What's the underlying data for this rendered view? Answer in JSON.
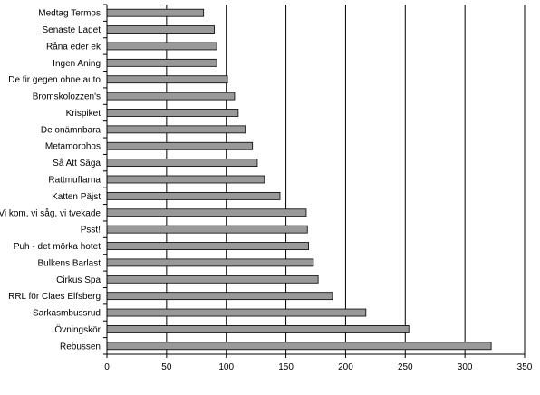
{
  "chart_data": {
    "type": "bar",
    "orientation": "horizontal",
    "categories": [
      "Medtag Termos",
      "Senaste Laget",
      "Råna eder ek",
      "Ingen Aning",
      "De fir gegen ohne auto",
      "Bromskolozzen's",
      "Krispiket",
      "De onämnbara",
      "Metamorphos",
      "Så Att Säga",
      "Rattmuffarna",
      "Katten Päjst",
      "Vi kom, vi såg, vi tvekade",
      "Psst!",
      "Puh - det mörka hotet",
      "Bulkens Barlast",
      "Cirkus Spa",
      "RRL för Claes Elfsberg",
      "Sarkasmbussrud",
      "Övningskör",
      "Rebussen"
    ],
    "values": [
      81,
      90,
      92,
      92,
      101,
      107,
      110,
      116,
      122,
      126,
      132,
      145,
      167,
      168,
      169,
      173,
      177,
      189,
      217,
      253,
      322
    ],
    "xlim": [
      0,
      350
    ],
    "xticks": [
      0,
      50,
      100,
      150,
      200,
      250,
      300,
      350
    ],
    "grid": true,
    "bar_color": "#999999",
    "title": "",
    "xlabel": "",
    "ylabel": ""
  }
}
